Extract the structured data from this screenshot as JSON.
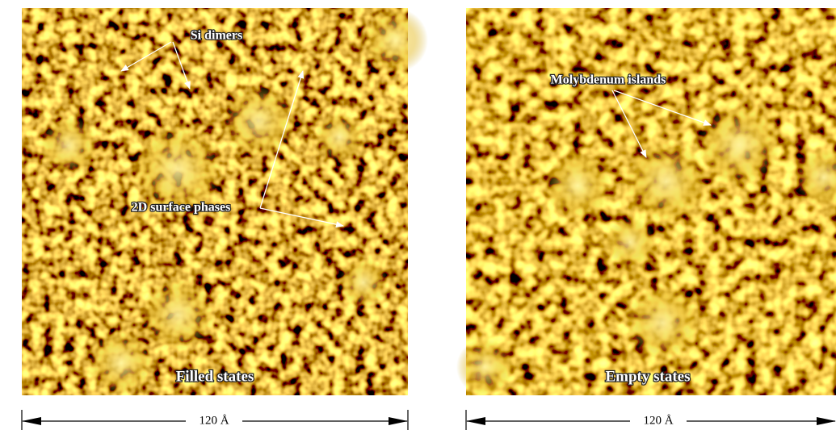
{
  "panels": [
    {
      "caption": "Filled states",
      "annotations": [
        "Si dimers",
        "2D surface phases"
      ],
      "scale": "120 Å"
    },
    {
      "caption": "Empty states",
      "annotations": [
        "Molybdenum islands"
      ],
      "scale": "120 Å"
    }
  ]
}
